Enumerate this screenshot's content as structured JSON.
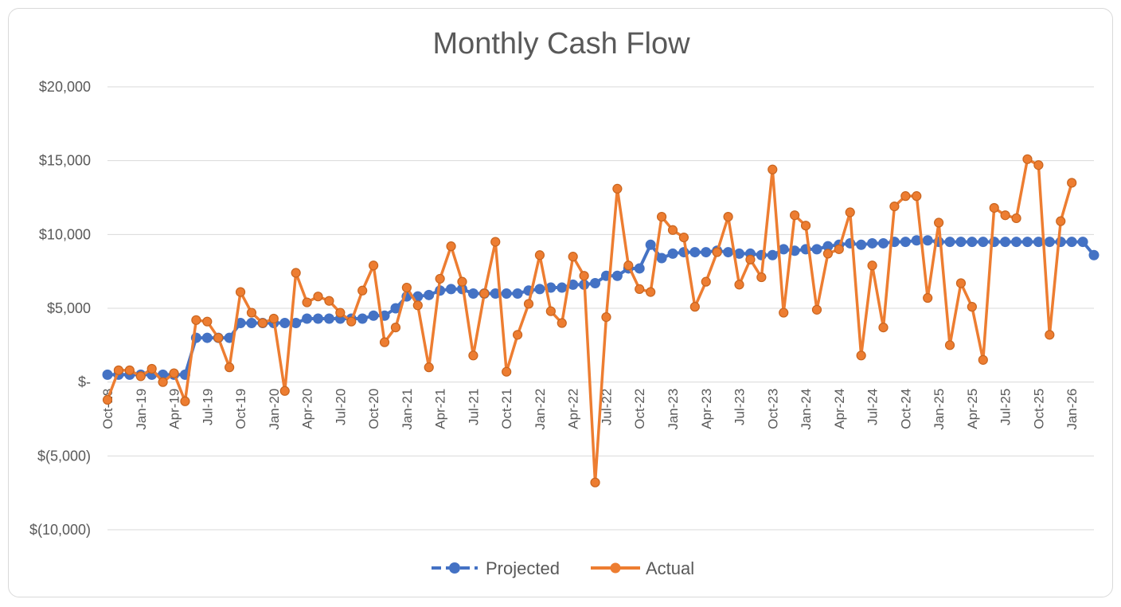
{
  "chart_data": {
    "type": "line",
    "title": "Monthly Cash Flow",
    "xlabel": "",
    "ylabel": "",
    "ylim": [
      -10000,
      20000
    ],
    "grid": true,
    "legend_position": "bottom",
    "y_tick_values": [
      20000,
      15000,
      10000,
      5000,
      0,
      -5000,
      -10000
    ],
    "y_tick_labels": [
      "$20,000",
      "$15,000",
      "$10,000",
      "$5,000",
      "$-",
      "$(5,000)",
      "$(10,000)"
    ],
    "x_tick_labels": [
      "Oct-18",
      "Jan-19",
      "Apr-19",
      "Jul-19",
      "Oct-19",
      "Jan-20",
      "Apr-20",
      "Jul-20",
      "Oct-20",
      "Jan-21",
      "Apr-21",
      "Jul-21",
      "Oct-21",
      "Jan-22",
      "Apr-22",
      "Jul-22",
      "Oct-22",
      "Jan-23",
      "Apr-23",
      "Jul-23",
      "Oct-23",
      "Jan-24",
      "Apr-24",
      "Jul-24",
      "Oct-24",
      "Jan-25",
      "Apr-25",
      "Jul-25",
      "Oct-25",
      "Jan-26"
    ],
    "series": [
      {
        "name": "Projected",
        "color": "#4472c4",
        "values": [
          500,
          500,
          500,
          500,
          500,
          500,
          500,
          500,
          3000,
          3000,
          3000,
          3000,
          4000,
          4000,
          4000,
          4000,
          4000,
          4000,
          4300,
          4300,
          4300,
          4300,
          4300,
          4300,
          4500,
          4500,
          5000,
          5800,
          5800,
          5900,
          6200,
          6300,
          6300,
          6000,
          6000,
          6000,
          6000,
          6000,
          6200,
          6300,
          6400,
          6400,
          6600,
          6600,
          6700,
          7200,
          7200,
          7700,
          7700,
          9300,
          8400,
          8700,
          8800,
          8800,
          8800,
          8900,
          8800,
          8700,
          8700,
          8600,
          8600,
          9000,
          8900,
          9000,
          9000,
          9200,
          9300,
          9400,
          9300,
          9400,
          9400,
          9500,
          9500,
          9600,
          9600,
          9500,
          9500,
          9500,
          9500,
          9500,
          9500,
          9500,
          9500,
          9500,
          9500,
          9500,
          9500,
          9500,
          9500,
          8600
        ]
      },
      {
        "name": "Actual",
        "color": "#ed7d31",
        "values": [
          -1200,
          800,
          800,
          400,
          900,
          0,
          600,
          -1300,
          4200,
          4100,
          3000,
          1000,
          6100,
          4700,
          4000,
          4300,
          -600,
          7400,
          5400,
          5800,
          5500,
          4700,
          4100,
          6200,
          7900,
          2700,
          3700,
          6400,
          5200,
          1000,
          7000,
          9200,
          6800,
          1800,
          6000,
          9500,
          700,
          3200,
          5300,
          8600,
          4800,
          4000,
          8500,
          7200,
          -6800,
          4400,
          13100,
          7900,
          6300,
          6100,
          11200,
          10300,
          9800,
          5100,
          6800,
          8800,
          11200,
          6600,
          8300,
          7100,
          14400,
          4700,
          11300,
          10600,
          4900,
          8700,
          9000,
          11500,
          1800,
          7900,
          3700,
          11900,
          12600,
          12600,
          5700,
          10800,
          2500,
          6700,
          5100,
          1500,
          11800,
          11300,
          11100,
          15100,
          14700,
          3200,
          10900,
          13500
        ]
      }
    ]
  }
}
